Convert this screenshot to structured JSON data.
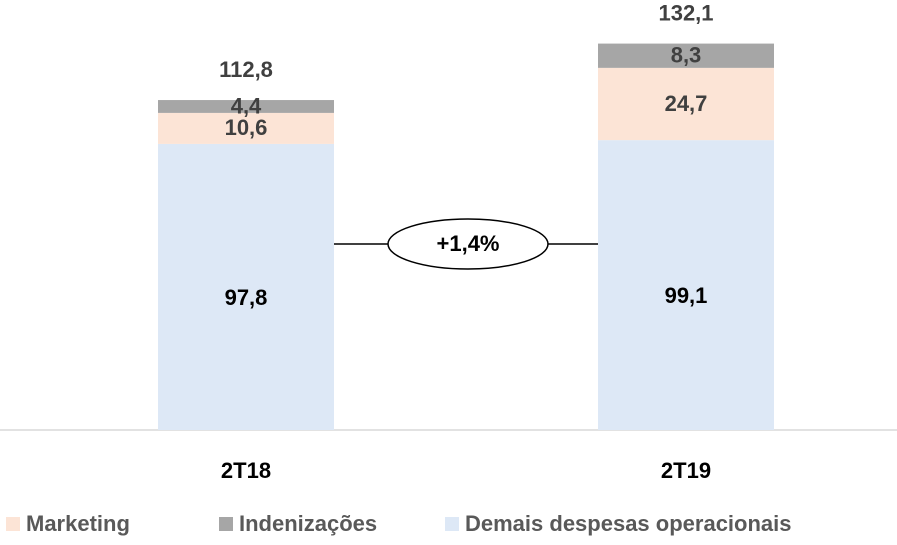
{
  "chart_data": {
    "type": "stacked_bar",
    "categories": [
      "2T18",
      "2T19"
    ],
    "series": [
      {
        "name": "Marketing",
        "color": "#fce4d6",
        "values": [
          10.6,
          24.7
        ],
        "value_labels": [
          "10,6",
          "24,7"
        ]
      },
      {
        "name": "Indenizações",
        "color": "#a6a6a6",
        "values": [
          4.4,
          8.3
        ],
        "value_labels": [
          "4,4",
          "8,3"
        ]
      },
      {
        "name": "Demais despesas operacionais",
        "color": "#dde8f6",
        "values": [
          97.8,
          99.1
        ],
        "value_labels": [
          "97,8",
          "99,1"
        ]
      }
    ],
    "totals": {
      "values": [
        112.8,
        132.1
      ],
      "value_labels": [
        "112,8",
        "132,1"
      ]
    },
    "annotation": "+1,4%",
    "ylim": [
      0,
      147
    ]
  }
}
